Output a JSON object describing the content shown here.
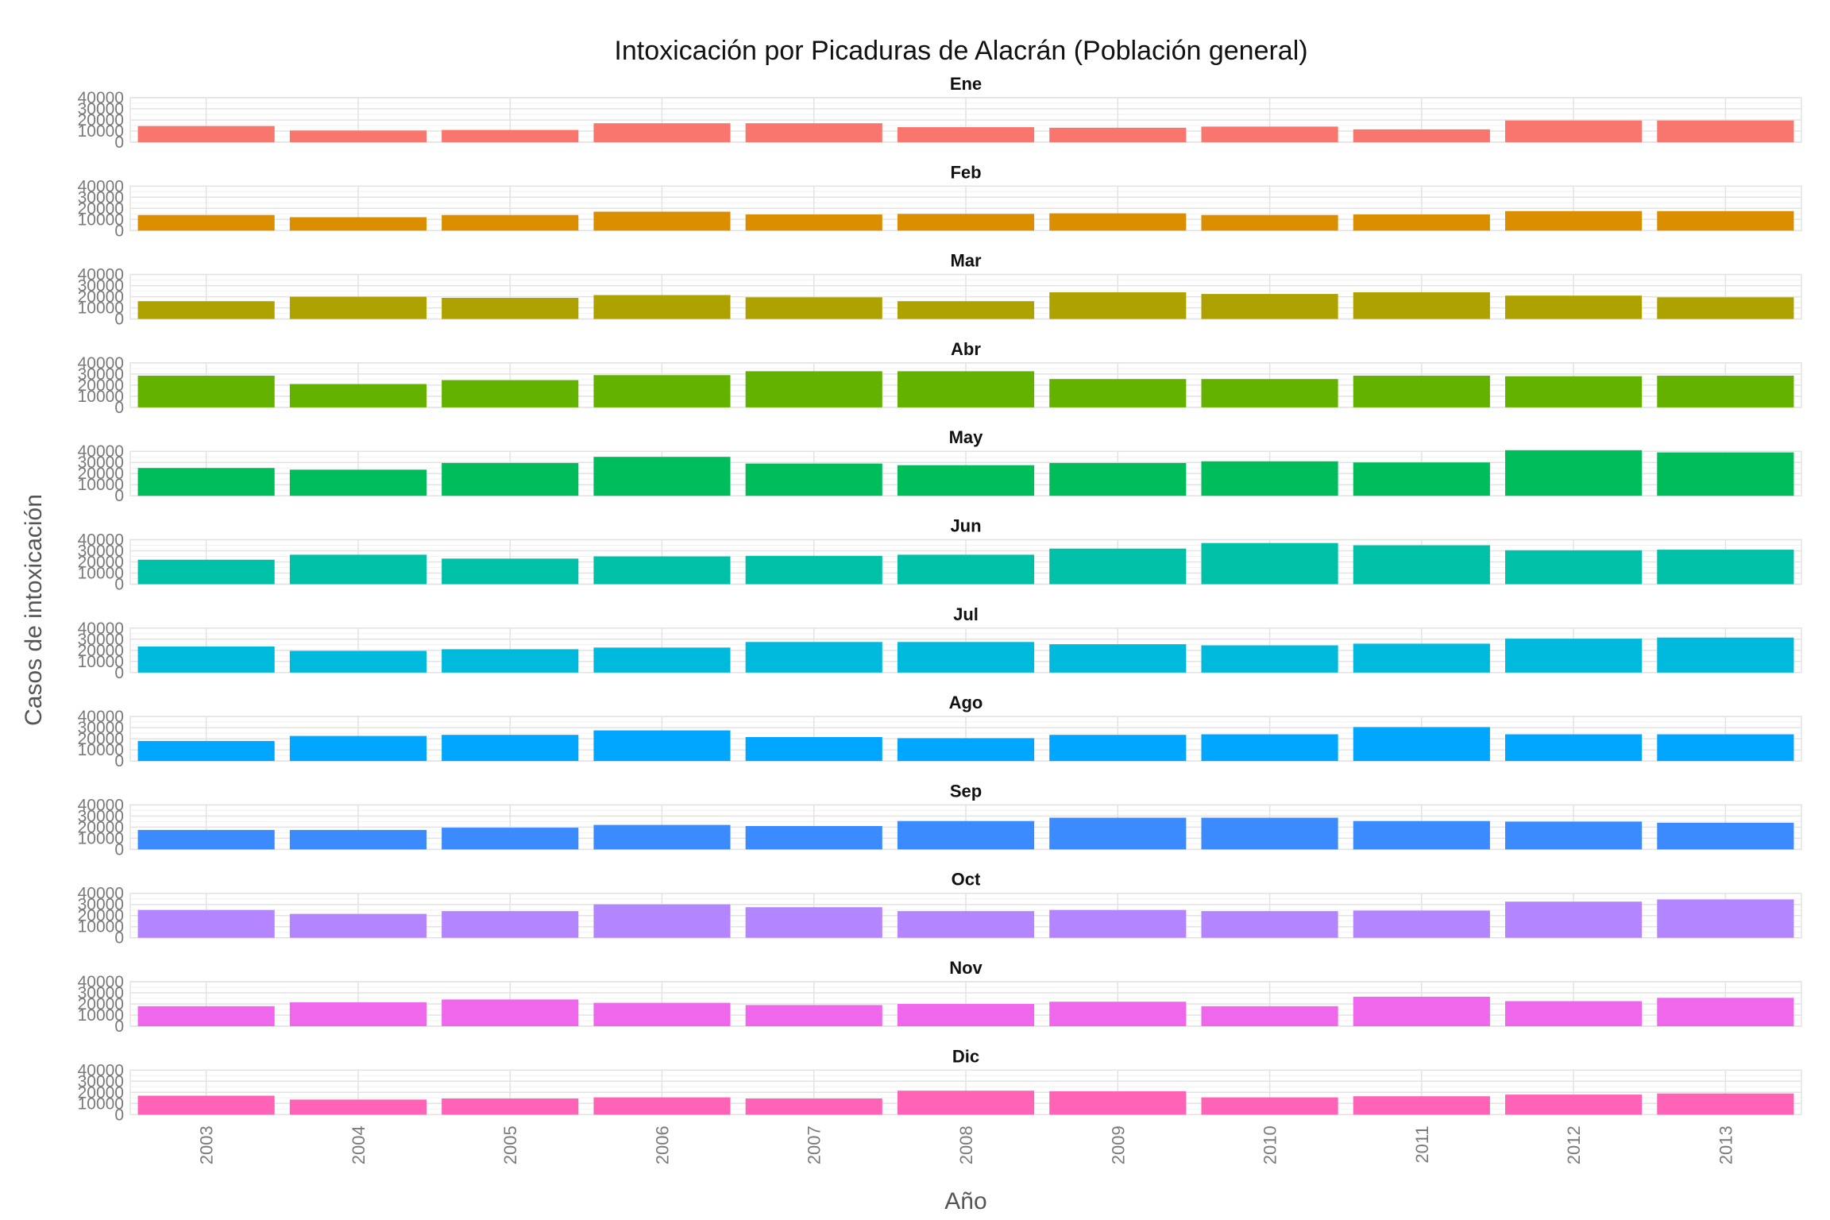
{
  "chart_data": {
    "type": "bar",
    "title": "Intoxicación por Picaduras de Alacrán (Población general)",
    "xlabel": "Año",
    "ylabel": "Casos de intoxicación",
    "ylim": [
      0,
      40000
    ],
    "yticks": [
      "0",
      "10000",
      "20000",
      "30000",
      "40000"
    ],
    "categories": [
      "2003",
      "2004",
      "2005",
      "2006",
      "2007",
      "2008",
      "2009",
      "2010",
      "2011",
      "2012",
      "2013"
    ],
    "grid": true,
    "legend": "none",
    "panels": [
      {
        "name": "Ene",
        "color": "#F8766D",
        "values": [
          14500,
          10500,
          11000,
          17000,
          17000,
          13500,
          13000,
          14000,
          11500,
          19500,
          19500
        ]
      },
      {
        "name": "Feb",
        "color": "#DB8E00",
        "values": [
          14000,
          12000,
          14000,
          17000,
          14500,
          15000,
          15500,
          14000,
          14500,
          17500,
          17500
        ]
      },
      {
        "name": "Mar",
        "color": "#AEA200",
        "values": [
          16000,
          20000,
          19000,
          21500,
          19500,
          16000,
          24000,
          22500,
          24000,
          21000,
          19500
        ]
      },
      {
        "name": "Abr",
        "color": "#64B200",
        "values": [
          28500,
          21000,
          24500,
          29000,
          32500,
          32500,
          25500,
          25500,
          28500,
          28000,
          28500
        ]
      },
      {
        "name": "May",
        "color": "#00BD5C",
        "values": [
          25000,
          23500,
          29500,
          35000,
          29000,
          27500,
          29500,
          31000,
          30000,
          41000,
          39000
        ]
      },
      {
        "name": "Jun",
        "color": "#00C1A7",
        "values": [
          22000,
          26500,
          23000,
          25000,
          25500,
          26500,
          32000,
          37000,
          35000,
          30500,
          31000
        ]
      },
      {
        "name": "Jul",
        "color": "#00BADE",
        "values": [
          23500,
          19500,
          21000,
          22500,
          27500,
          27500,
          25500,
          24500,
          26000,
          30500,
          31500
        ]
      },
      {
        "name": "Ago",
        "color": "#00A6FF",
        "values": [
          18000,
          22500,
          23500,
          27500,
          21500,
          20500,
          23500,
          24000,
          30500,
          24000,
          24000
        ]
      },
      {
        "name": "Sep",
        "color": "#3B8BFF",
        "values": [
          17500,
          17500,
          19500,
          22000,
          21000,
          25500,
          28500,
          28500,
          25500,
          25000,
          24000
        ]
      },
      {
        "name": "Oct",
        "color": "#B385FF",
        "values": [
          25000,
          21500,
          24000,
          30000,
          27500,
          24000,
          25000,
          24000,
          24500,
          32500,
          34500
        ]
      },
      {
        "name": "Nov",
        "color": "#EF67EB",
        "values": [
          18000,
          21500,
          24000,
          21000,
          19000,
          20000,
          22000,
          18000,
          26500,
          22500,
          25500
        ]
      },
      {
        "name": "Dic",
        "color": "#FF63B6",
        "values": [
          17000,
          13500,
          14500,
          15500,
          14500,
          21500,
          21000,
          15500,
          16500,
          18000,
          19000
        ]
      }
    ]
  }
}
